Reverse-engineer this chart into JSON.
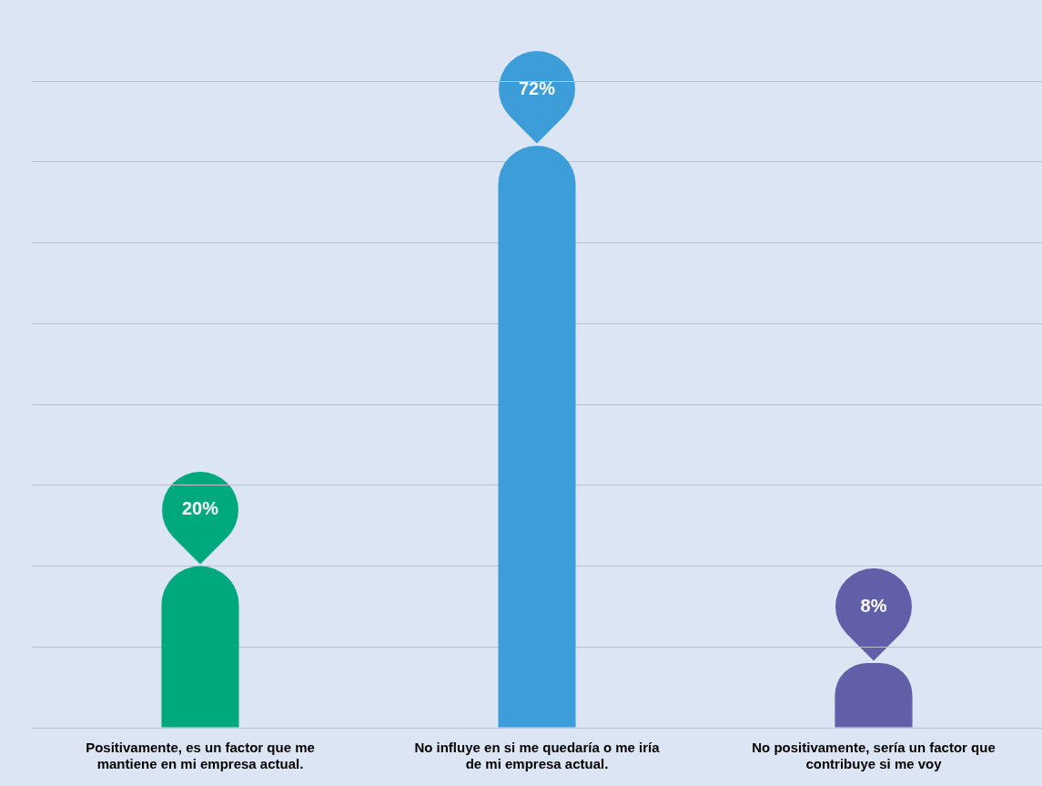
{
  "chart_data": {
    "type": "bar",
    "categories": [
      "Positivamente, es un factor que me mantiene en mi empresa actual.",
      "No influye en si me quedaría o me iría de mi empresa actual.",
      "No positivamente, sería un factor que contribuye si me voy"
    ],
    "values": [
      20,
      72,
      8
    ],
    "colors": [
      "#00a87e",
      "#3d9dd8",
      "#625fa9"
    ],
    "value_labels": [
      "20%",
      "72%",
      "8%"
    ],
    "tick_labels": "x",
    "grid": "y",
    "legend": false
  }
}
